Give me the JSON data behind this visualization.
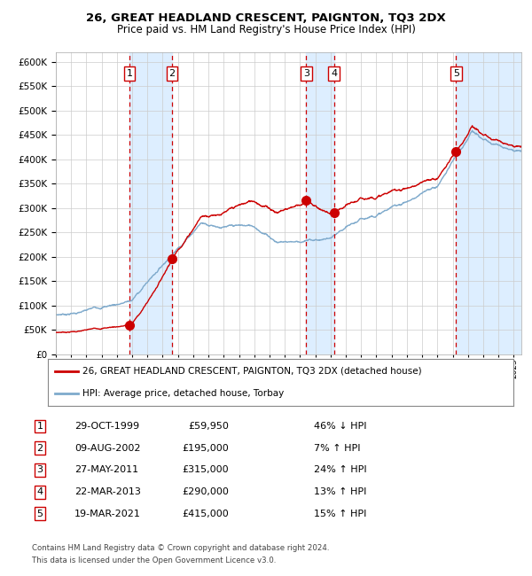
{
  "title": "26, GREAT HEADLAND CRESCENT, PAIGNTON, TQ3 2DX",
  "subtitle": "Price paid vs. HM Land Registry's House Price Index (HPI)",
  "legend_line1": "26, GREAT HEADLAND CRESCENT, PAIGNTON, TQ3 2DX (detached house)",
  "legend_line2": "HPI: Average price, detached house, Torbay",
  "footer1": "Contains HM Land Registry data © Crown copyright and database right 2024.",
  "footer2": "This data is licensed under the Open Government Licence v3.0.",
  "sales": [
    {
      "num": 1,
      "date": "29-OCT-1999",
      "price": 59950,
      "pct": "46%",
      "dir": "↓",
      "year": 1999.83
    },
    {
      "num": 2,
      "date": "09-AUG-2002",
      "price": 195000,
      "pct": "7%",
      "dir": "↑",
      "year": 2002.61
    },
    {
      "num": 3,
      "date": "27-MAY-2011",
      "price": 315000,
      "pct": "24%",
      "dir": "↑",
      "year": 2011.41
    },
    {
      "num": 4,
      "date": "22-MAR-2013",
      "price": 290000,
      "pct": "13%",
      "dir": "↑",
      "year": 2013.22
    },
    {
      "num": 5,
      "date": "19-MAR-2021",
      "price": 415000,
      "pct": "15%",
      "dir": "↑",
      "year": 2021.22
    }
  ],
  "ylim": [
    0,
    620000
  ],
  "xlim_start": 1995.0,
  "xlim_end": 2025.5,
  "hpi_color": "#7faacc",
  "price_color": "#cc0000",
  "sale_dot_color": "#cc0000",
  "vband_color": "#ddeeff",
  "grid_color": "#cccccc",
  "sale_label_border": "#cc0000",
  "dashed_line_color": "#cc0000"
}
